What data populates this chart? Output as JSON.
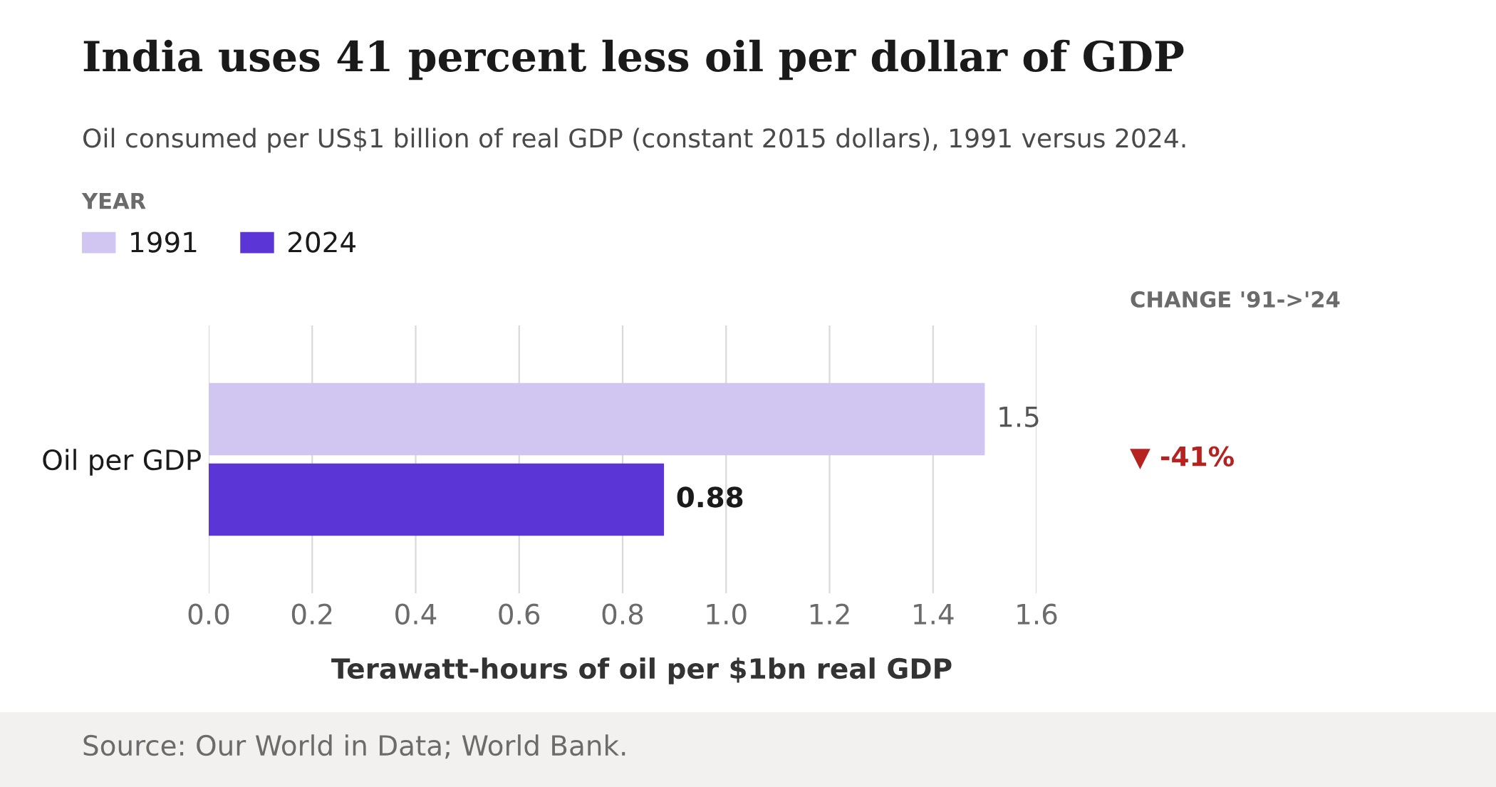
{
  "chart_data": {
    "type": "bar",
    "orientation": "horizontal",
    "title": "India uses 41 percent less oil per dollar of GDP",
    "subtitle": "Oil consumed per US$1 billion of real GDP (constant 2015 dollars), 1991 versus 2024.",
    "xlabel": "Terawatt-hours of oil per $1bn real GDP",
    "legend_title": "YEAR",
    "categories": [
      "Oil per GDP"
    ],
    "series": [
      {
        "name": "1991",
        "color": "#d1c6f2",
        "values": [
          1.5
        ]
      },
      {
        "name": "2024",
        "color": "#5b35d6",
        "values": [
          0.88
        ]
      }
    ],
    "xlim": [
      0,
      1.6
    ],
    "xticks": [
      {
        "value": 0,
        "label": "0.0"
      },
      0.2,
      0.4,
      0.6,
      0.8,
      {
        "value": 1,
        "label": "1.0"
      },
      1.2,
      1.4,
      1.6
    ],
    "grid": "x",
    "legend": "top left",
    "data_labels": true,
    "annotations": [
      "CHANGE '91->'24",
      "▼ -41%",
      "Source: Our World in Data; World Bank."
    ]
  }
}
